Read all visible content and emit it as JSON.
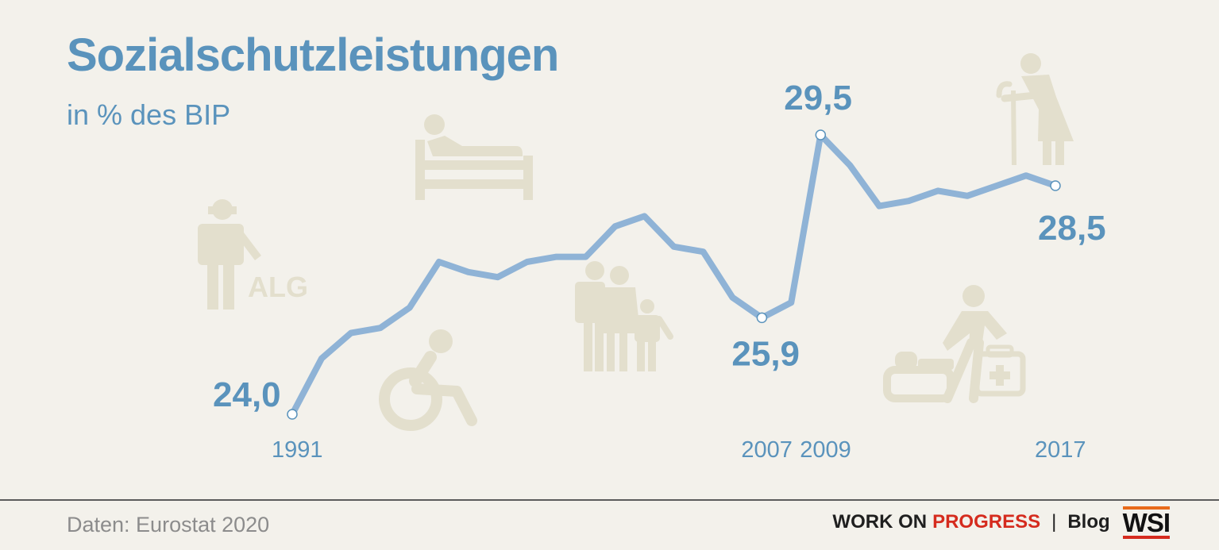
{
  "header": {
    "title": "Sozialschutzleistungen",
    "subtitle": "in % des BIP"
  },
  "chart_data": {
    "type": "line",
    "title": "Sozialschutzleistungen",
    "subtitle": "in % des BIP",
    "x": [
      1991,
      1992,
      1993,
      1994,
      1995,
      1996,
      1997,
      1998,
      1999,
      2000,
      2001,
      2002,
      2003,
      2004,
      2005,
      2006,
      2007,
      2008,
      2009,
      2010,
      2011,
      2012,
      2013,
      2014,
      2015,
      2016,
      2017
    ],
    "values": [
      24.0,
      25.1,
      25.6,
      25.7,
      26.1,
      27.0,
      26.8,
      26.7,
      27.0,
      27.1,
      27.1,
      27.7,
      27.9,
      27.3,
      27.2,
      26.3,
      25.9,
      26.2,
      29.5,
      28.9,
      28.1,
      28.2,
      28.4,
      28.3,
      28.5,
      28.7,
      28.5
    ],
    "labeled_points": [
      {
        "x": 1991,
        "label": "24,0"
      },
      {
        "x": 2007,
        "label": "25,9"
      },
      {
        "x": 2009,
        "label": "29,5"
      },
      {
        "x": 2017,
        "label": "28,5"
      }
    ],
    "x_tick_labels": [
      "1991",
      "2007",
      "2009",
      "2017"
    ],
    "ylim": [
      23.2,
      30.7
    ],
    "grid": false,
    "line_color": "#8fb3d6"
  },
  "icons": {
    "alg_text": "ALG",
    "names": [
      "worker-icon",
      "hospital-bed-icon",
      "wheelchair-icon",
      "family-icon",
      "elderly-woman-icon",
      "caregiver-icon"
    ]
  },
  "footer": {
    "source": "Daten: Eurostat 2020",
    "brand_work": "WORK ON",
    "brand_progress": "PROGRESS",
    "brand_separator": "|",
    "brand_blog": "Blog",
    "logo_text": "WSI"
  },
  "colors": {
    "background": "#f3f1eb",
    "accent": "#5a93bc",
    "line": "#8fb3d6",
    "icons": "#e3dfcd",
    "brand_red": "#d52b1e",
    "logo_orange": "#e86a1a"
  }
}
